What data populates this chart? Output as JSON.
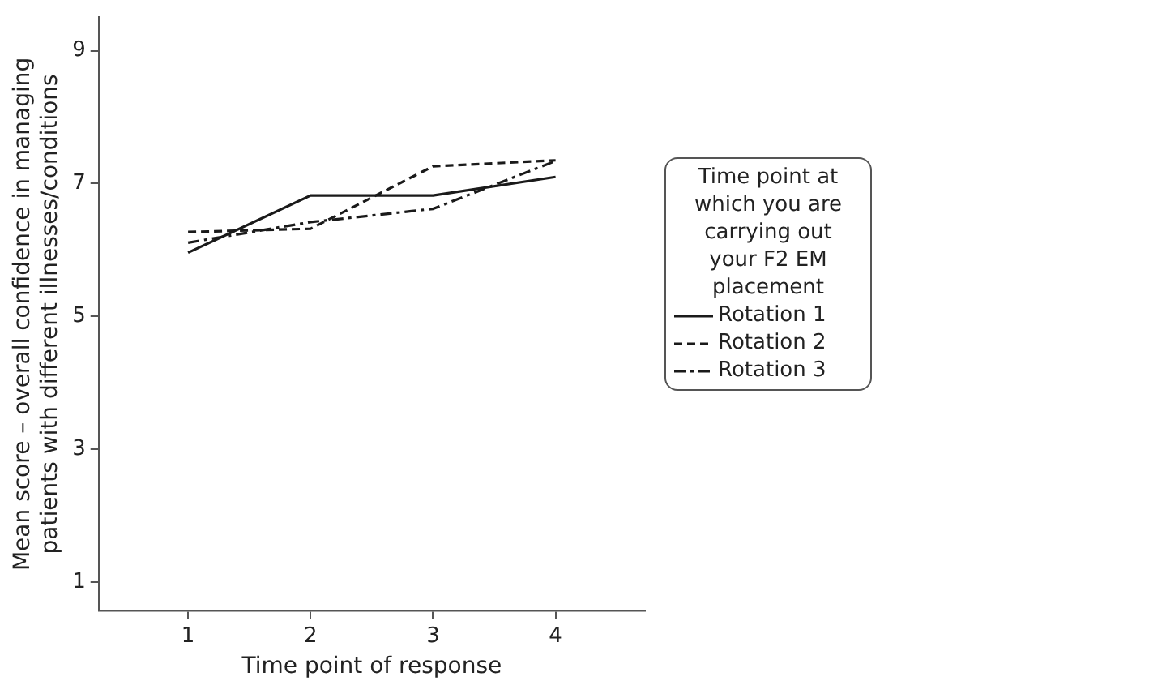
{
  "chart_data": {
    "type": "line",
    "xlabel": "Time point of response",
    "ylabel": "Mean score – overall confidence in managing patients with different illnesses/conditions",
    "legend_title": "Time point at which you are carrying out your F2 EM placement",
    "x": [
      1,
      2,
      3,
      4
    ],
    "series": [
      {
        "name": "Rotation 1",
        "color": "#1a1a1a",
        "line_style": "solid",
        "values": [
          5.96,
          6.82,
          6.82,
          7.1
        ]
      },
      {
        "name": "Rotation 2",
        "color": "#1a1a1a",
        "line_style": "dashed",
        "values": [
          6.27,
          6.32,
          7.26,
          7.35
        ]
      },
      {
        "name": "Rotation 3",
        "color": "#1a1a1a",
        "line_style": "dashdot",
        "values": [
          6.11,
          6.42,
          6.62,
          7.34
        ]
      }
    ],
    "xlim": [
      0.27,
      4.73
    ],
    "xticks": [
      1,
      2,
      3,
      4
    ],
    "ylim": [
      0.57,
      9.5
    ],
    "yticks": [
      1,
      3,
      5,
      7,
      9
    ],
    "grid": false,
    "legend": "right",
    "marker": "none"
  }
}
